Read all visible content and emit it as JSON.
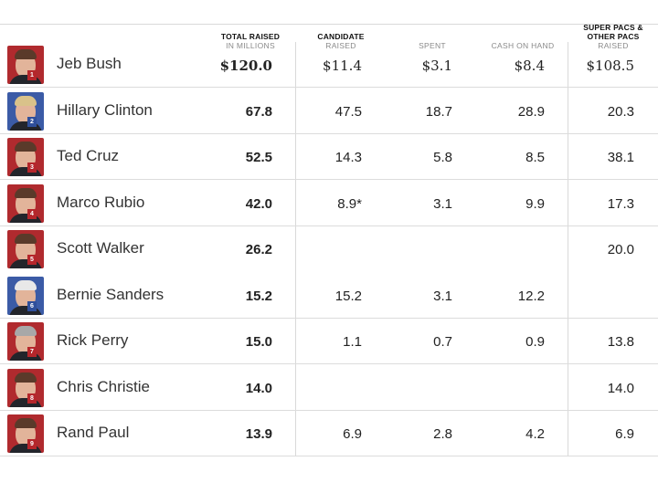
{
  "chart_data": {
    "type": "table",
    "columns": [
      {
        "key": "total",
        "title": "TOTAL RAISED",
        "sub": "IN MILLIONS"
      },
      {
        "key": "candidate_raised",
        "title": "CANDIDATE",
        "sub": "RAISED"
      },
      {
        "key": "spent",
        "title": "",
        "sub": "SPENT"
      },
      {
        "key": "cash",
        "title": "",
        "sub": "CASH ON HAND"
      },
      {
        "key": "pac_raised",
        "title": "SUPER PACS &\nOTHER PACS",
        "sub": "RAISED"
      }
    ],
    "rows": [
      {
        "rank": "1",
        "name": "Jeb Bush",
        "total": "$120.0",
        "candidate_raised": "$11.4",
        "spent": "$3.1",
        "cash": "$8.4",
        "pac_raised": "$108.5",
        "party": "R",
        "hair": "dark"
      },
      {
        "rank": "2",
        "name": "Hillary Clinton",
        "total": "67.8",
        "candidate_raised": "47.5",
        "spent": "18.7",
        "cash": "28.9",
        "pac_raised": "20.3",
        "party": "D",
        "hair": "light"
      },
      {
        "rank": "3",
        "name": "Ted Cruz",
        "total": "52.5",
        "candidate_raised": "14.3",
        "spent": "5.8",
        "cash": "8.5",
        "pac_raised": "38.1",
        "party": "R",
        "hair": "dark"
      },
      {
        "rank": "4",
        "name": "Marco Rubio",
        "total": "42.0",
        "candidate_raised": "8.9*",
        "spent": "3.1",
        "cash": "9.9",
        "pac_raised": "17.3",
        "party": "R",
        "hair": "dark"
      },
      {
        "rank": "5",
        "name": "Scott Walker",
        "total": "26.2",
        "candidate_raised": "",
        "spent": "",
        "cash": "",
        "pac_raised": "20.0",
        "party": "R",
        "hair": "dark"
      },
      {
        "rank": "6",
        "name": "Bernie Sanders",
        "total": "15.2",
        "candidate_raised": "15.2",
        "spent": "3.1",
        "cash": "12.2",
        "pac_raised": "",
        "party": "D",
        "hair": "white"
      },
      {
        "rank": "7",
        "name": "Rick Perry",
        "total": "15.0",
        "candidate_raised": "1.1",
        "spent": "0.7",
        "cash": "0.9",
        "pac_raised": "13.8",
        "party": "R",
        "hair": "gray"
      },
      {
        "rank": "8",
        "name": "Chris Christie",
        "total": "14.0",
        "candidate_raised": "",
        "spent": "",
        "cash": "",
        "pac_raised": "14.0",
        "party": "R",
        "hair": "dark"
      },
      {
        "rank": "9",
        "name": "Rand Paul",
        "total": "13.9",
        "candidate_raised": "6.9",
        "spent": "2.8",
        "cash": "4.2",
        "pac_raised": "6.9",
        "party": "R",
        "hair": "dark"
      }
    ]
  },
  "colors": {
    "republican": "#b5262b",
    "democrat": "#2f4f9b",
    "rule": "#d9d9d9",
    "subheader": "#8a8a8a"
  }
}
